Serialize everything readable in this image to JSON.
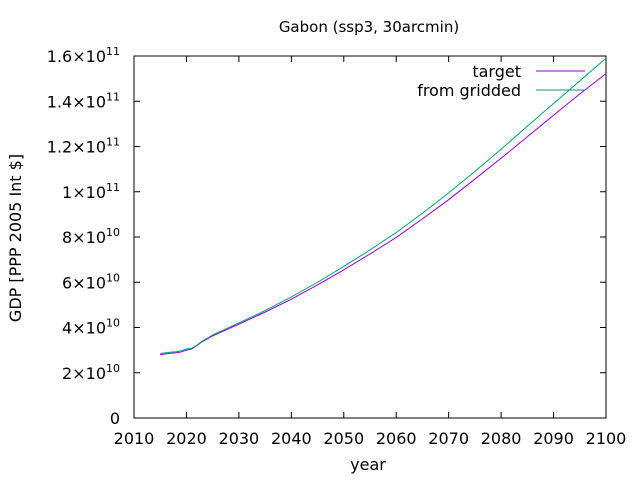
{
  "chart_data": {
    "type": "line",
    "title": "Gabon (ssp3, 30arcmin)",
    "xlabel": "year",
    "ylabel": "GDP [PPP 2005 Int $]",
    "xlim": [
      2010,
      2100
    ],
    "ylim": [
      0,
      160000000000
    ],
    "grid": false,
    "legend_position": "top-right",
    "x_ticks": [
      {
        "value": 2010,
        "label": "2010"
      },
      {
        "value": 2020,
        "label": "2020"
      },
      {
        "value": 2030,
        "label": "2030"
      },
      {
        "value": 2040,
        "label": "2040"
      },
      {
        "value": 2050,
        "label": "2050"
      },
      {
        "value": 2060,
        "label": "2060"
      },
      {
        "value": 2070,
        "label": "2070"
      },
      {
        "value": 2080,
        "label": "2080"
      },
      {
        "value": 2090,
        "label": "2090"
      },
      {
        "value": 2100,
        "label": "2100"
      }
    ],
    "y_ticks": [
      {
        "value": 0,
        "mantissa": "0",
        "exponent": ""
      },
      {
        "value": 20000000000,
        "mantissa": "2×10",
        "exponent": "10"
      },
      {
        "value": 40000000000,
        "mantissa": "4×10",
        "exponent": "10"
      },
      {
        "value": 60000000000,
        "mantissa": "6×10",
        "exponent": "10"
      },
      {
        "value": 80000000000,
        "mantissa": "8×10",
        "exponent": "10"
      },
      {
        "value": 100000000000,
        "mantissa": "1×10",
        "exponent": "11"
      },
      {
        "value": 120000000000,
        "mantissa": "1.2×10",
        "exponent": "11"
      },
      {
        "value": 140000000000,
        "mantissa": "1.4×10",
        "exponent": "11"
      },
      {
        "value": 160000000000,
        "mantissa": "1.6×10",
        "exponent": "11"
      }
    ],
    "series": [
      {
        "name": "target",
        "color": "#9400d3",
        "x": [
          2015,
          2016,
          2017,
          2018,
          2019,
          2020,
          2021,
          2022,
          2023,
          2024,
          2025,
          2030,
          2035,
          2040,
          2045,
          2050,
          2055,
          2060,
          2065,
          2070,
          2075,
          2080,
          2085,
          2090,
          2095,
          2100
        ],
        "y": [
          28000000000.0,
          28300000000.0,
          28600000000.0,
          28800000000.0,
          29200000000.0,
          30000000000.0,
          30500000000.0,
          32000000000.0,
          33700000000.0,
          35000000000.0,
          36300000000.0,
          41500000000.0,
          46800000000.0,
          52500000000.0,
          58800000000.0,
          65500000000.0,
          72500000000.0,
          79800000000.0,
          88000000000.0,
          96500000000.0,
          105600000000.0,
          114800000000.0,
          124300000000.0,
          133800000000.0,
          143200000000.0,
          152200000000.0
        ]
      },
      {
        "name": "from gridded",
        "color": "#009e73",
        "x": [
          2015,
          2016,
          2017,
          2018,
          2019,
          2020,
          2021,
          2022,
          2023,
          2024,
          2025,
          2030,
          2035,
          2040,
          2045,
          2050,
          2055,
          2060,
          2065,
          2070,
          2075,
          2080,
          2085,
          2090,
          2095,
          2100
        ],
        "y": [
          28500000000.0,
          28800000000.0,
          29100000000.0,
          29300000000.0,
          29700000000.0,
          30500000000.0,
          30800000000.0,
          32200000000.0,
          34000000000.0,
          35300000000.0,
          36700000000.0,
          42000000000.0,
          47500000000.0,
          53500000000.0,
          60000000000.0,
          67000000000.0,
          74300000000.0,
          82000000000.0,
          90500000000.0,
          99500000000.0,
          109000000000.0,
          118800000000.0,
          129000000000.0,
          139000000000.0,
          149000000000.0,
          159000000000.0
        ]
      }
    ]
  }
}
